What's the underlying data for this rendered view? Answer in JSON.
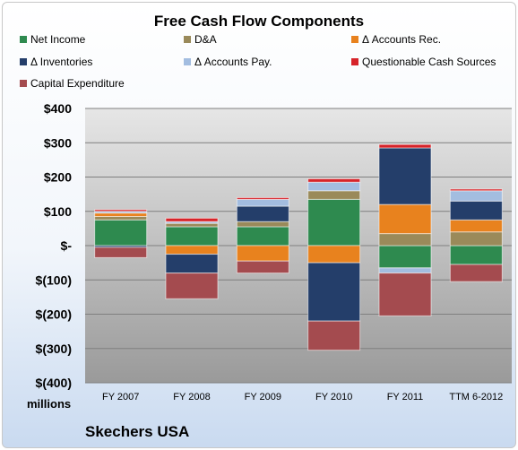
{
  "chart_data": {
    "type": "bar",
    "stacked": true,
    "title": "Free Cash Flow Components",
    "categories": [
      "FY 2007",
      "FY 2008",
      "FY 2009",
      "FY 2010",
      "FY 2011",
      "TTM 6-2012"
    ],
    "units_label": "millions",
    "company": "Skechers USA",
    "ylim": [
      -400,
      400
    ],
    "yticks": [
      {
        "v": 400,
        "label": "$400"
      },
      {
        "v": 300,
        "label": "$300"
      },
      {
        "v": 200,
        "label": "$200"
      },
      {
        "v": 100,
        "label": "$100"
      },
      {
        "v": 0,
        "label": "$-"
      },
      {
        "v": -100,
        "label": "$(100)"
      },
      {
        "v": -200,
        "label": "$(200)"
      },
      {
        "v": -300,
        "label": "$(300)"
      },
      {
        "v": -400,
        "label": "$(400)"
      }
    ],
    "grid": true,
    "legend_position": "top",
    "series": [
      {
        "name": "Net Income",
        "color": "#2e8a4f",
        "values": [
          75,
          55,
          55,
          135,
          -65,
          -55
        ]
      },
      {
        "name": "D&A",
        "color": "#9a8a5a",
        "values": [
          10,
          10,
          15,
          25,
          35,
          40
        ]
      },
      {
        "name": "Δ Accounts Rec.",
        "color": "#e8821e",
        "values": [
          10,
          -25,
          -45,
          -50,
          85,
          35
        ]
      },
      {
        "name": "Δ Inventories",
        "color": "#243e6a",
        "values": [
          -5,
          -55,
          45,
          -170,
          165,
          55
        ]
      },
      {
        "name": "Δ Accounts Pay.",
        "color": "#a3bde0",
        "values": [
          5,
          5,
          20,
          25,
          -15,
          30
        ]
      },
      {
        "name": "Questionable Cash Sources",
        "color": "#d7242a",
        "values": [
          5,
          10,
          5,
          10,
          10,
          5
        ]
      },
      {
        "name": "Capital Expenditure",
        "color": "#a44b4f",
        "values": [
          -30,
          -75,
          -35,
          -85,
          -125,
          -50
        ]
      }
    ]
  }
}
